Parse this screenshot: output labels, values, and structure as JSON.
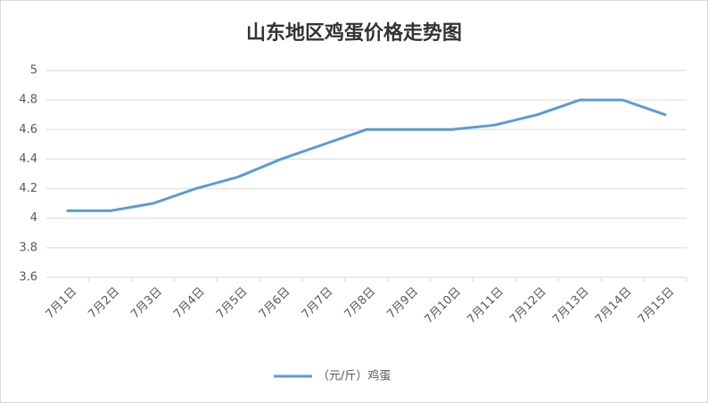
{
  "chart_data": {
    "type": "line",
    "title": "山东地区鸡蛋价格走势图",
    "categories": [
      "7月1日",
      "7月2日",
      "7月3日",
      "7月4日",
      "7月5日",
      "7月6日",
      "7月7日",
      "7月8日",
      "7月9日",
      "7月10日",
      "7月11日",
      "7月12日",
      "7月13日",
      "7月14日",
      "7月15日"
    ],
    "series": [
      {
        "name": "（元/斤）鸡蛋",
        "color": "#5b9bd5",
        "values": [
          4.05,
          4.05,
          4.1,
          4.2,
          4.28,
          4.4,
          4.5,
          4.6,
          4.6,
          4.6,
          4.63,
          4.7,
          4.8,
          4.8,
          4.7
        ]
      }
    ],
    "ylim": [
      3.6,
      5
    ],
    "yticks": [
      3.6,
      3.8,
      4,
      4.2,
      4.4,
      4.6,
      4.8,
      5
    ],
    "grid": true,
    "legend": "bottom"
  }
}
